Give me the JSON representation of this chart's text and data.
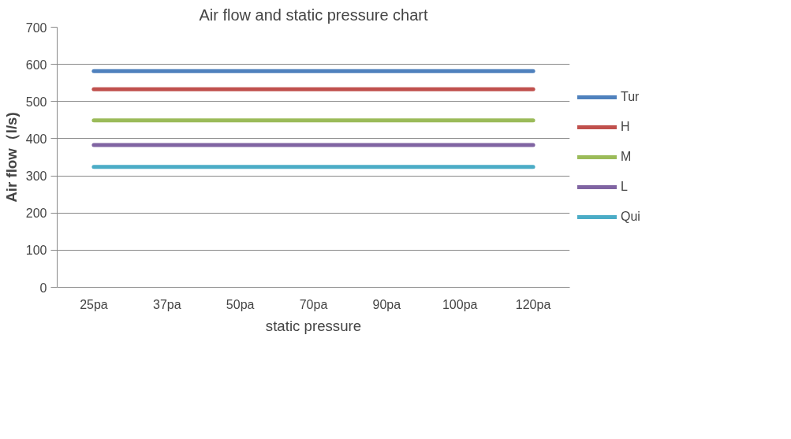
{
  "chart_data": {
    "type": "line",
    "title": "Air flow and static pressure chart",
    "xlabel": "static pressure",
    "ylabel": "Air flow（l/s)",
    "categories": [
      "25pa",
      "37pa",
      "50pa",
      "70pa",
      "90pa",
      "100pa",
      "120pa"
    ],
    "series": [
      {
        "name": "Tur",
        "color": "#4f81bd",
        "values": [
          582,
          582,
          582,
          582,
          582,
          582,
          582
        ]
      },
      {
        "name": "H",
        "color": "#c0504d",
        "values": [
          533,
          533,
          533,
          533,
          533,
          533,
          533
        ]
      },
      {
        "name": "M",
        "color": "#9bbb59",
        "values": [
          449,
          449,
          449,
          449,
          449,
          449,
          449
        ]
      },
      {
        "name": "L",
        "color": "#8064a2",
        "values": [
          383,
          383,
          383,
          383,
          383,
          383,
          383
        ]
      },
      {
        "name": "Qui",
        "color": "#4bacc6",
        "values": [
          324,
          324,
          324,
          324,
          324,
          324,
          324
        ]
      }
    ],
    "ylim": [
      0,
      700
    ],
    "yticks": [
      0,
      100,
      200,
      300,
      400,
      500,
      600,
      700
    ],
    "grid": "y",
    "legend": "right",
    "marker": "none",
    "line_style": "solid"
  }
}
